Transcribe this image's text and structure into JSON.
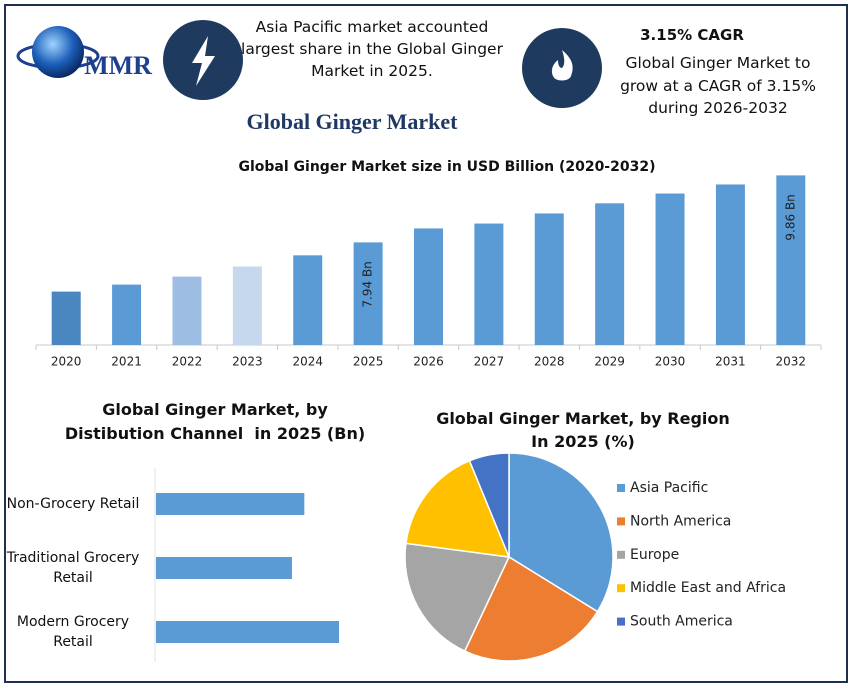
{
  "header": {
    "logo_text": "MMR",
    "insight_1": "Asia Pacific market accounted largest share in the Global Ginger Market in 2025.",
    "insight_2_title": "3.15% CAGR",
    "insight_2": "Global Ginger Market to grow at a CAGR of 3.15% during 2026-2032"
  },
  "main_title": "Global Ginger Market",
  "chart_data": [
    {
      "type": "bar",
      "title": "Global Ginger Market size in USD Billion (2020-2032)",
      "categories": [
        "2020",
        "2021",
        "2022",
        "2023",
        "2024",
        "2025",
        "2026",
        "2027",
        "2028",
        "2029",
        "2030",
        "2031",
        "2032"
      ],
      "values": [
        6.53,
        6.73,
        6.96,
        7.25,
        7.57,
        7.94,
        8.34,
        8.48,
        8.77,
        9.06,
        9.34,
        9.6,
        9.86
      ],
      "value_labels": [
        null,
        null,
        null,
        null,
        null,
        "7.94 Bn",
        null,
        null,
        null,
        null,
        null,
        null,
        "9.86 Bn"
      ],
      "colors": [
        "#4a86c0",
        "#5b9bd5",
        "#9dbde3",
        "#c5d8ee",
        "#5b9bd5",
        "#5b9bd5",
        "#5b9bd5",
        "#5b9bd5",
        "#5b9bd5",
        "#5b9bd5",
        "#5b9bd5",
        "#5b9bd5",
        "#5b9bd5"
      ],
      "ylim": [
        5,
        10
      ]
    },
    {
      "type": "hbar",
      "title": "Global Ginger Market, by Distibution Channel  in 2025 (Bn)",
      "categories": [
        "Non-Grocery Retail",
        "Traditional Grocery Retail",
        "Modern Grocery Retail"
      ],
      "values": [
        2.52,
        2.31,
        3.11
      ],
      "color": "#5b9bd5",
      "xlim": [
        0,
        3.5
      ]
    },
    {
      "type": "pie",
      "title": "Global Ginger Market, by Region In 2025 (%)",
      "categories": [
        "Asia Pacific",
        "North America",
        "Europe",
        "Middle East and Africa",
        "South America"
      ],
      "values": [
        33.8,
        23.2,
        20.1,
        16.7,
        6.2
      ],
      "colors": [
        "#5b9bd5",
        "#ed7d31",
        "#a5a5a5",
        "#ffc000",
        "#4472c4"
      ],
      "legend": "right"
    }
  ]
}
